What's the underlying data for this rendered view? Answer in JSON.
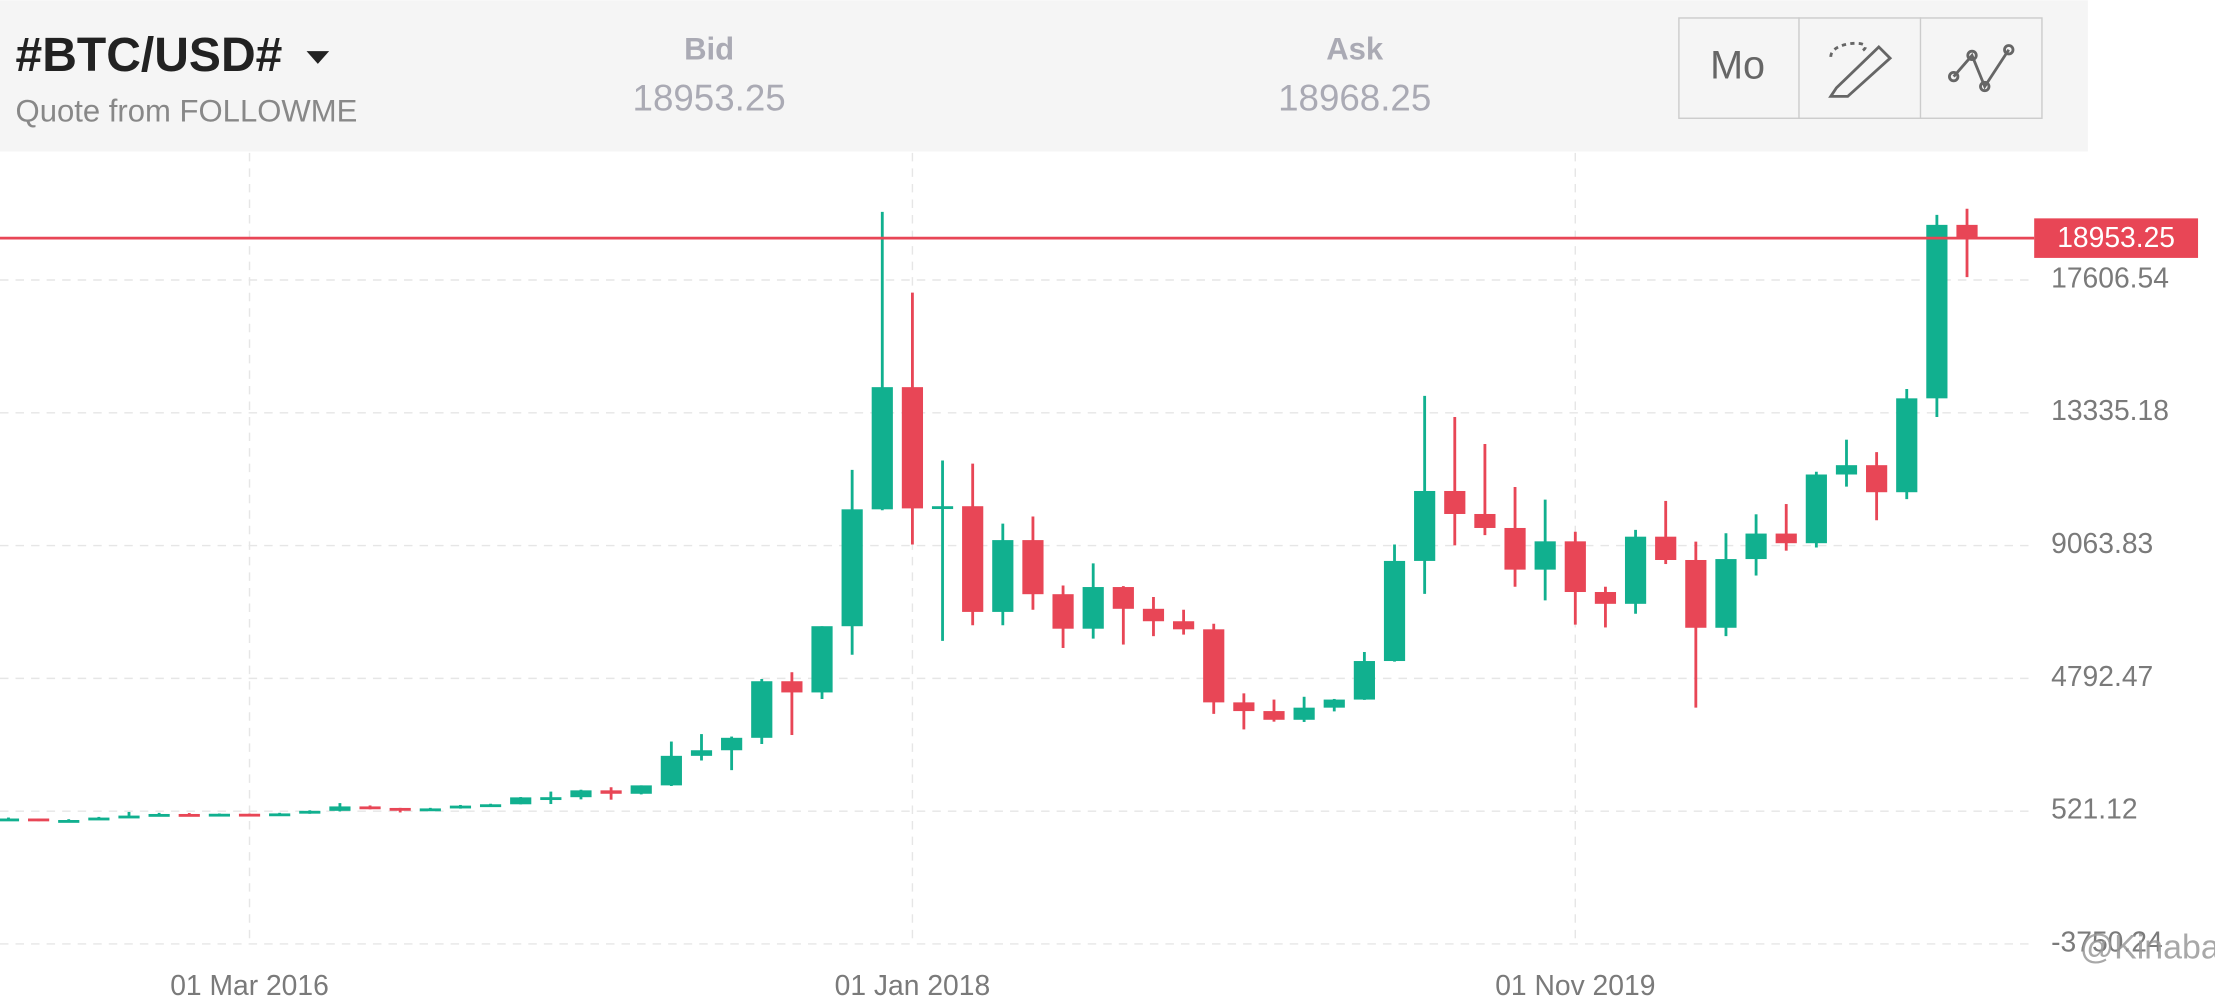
{
  "header": {
    "symbol": "#BTC/USD#",
    "source": "Quote from FOLLOWME",
    "bid_label": "Bid",
    "bid_value": "18953.25",
    "ask_label": "Ask",
    "ask_value": "18968.25",
    "period_button": "Mo"
  },
  "watermark": "@Kinabalu",
  "chart_data": {
    "type": "candlestick",
    "x": [
      "2015-07",
      "2015-08",
      "2015-09",
      "2015-10",
      "2015-11",
      "2015-12",
      "2016-01",
      "2016-02",
      "2016-03",
      "2016-04",
      "2016-05",
      "2016-06",
      "2016-07",
      "2016-08",
      "2016-09",
      "2016-10",
      "2016-11",
      "2016-12",
      "2017-01",
      "2017-02",
      "2017-03",
      "2017-04",
      "2017-05",
      "2017-06",
      "2017-07",
      "2017-08",
      "2017-09",
      "2017-10",
      "2017-11",
      "2017-12",
      "2018-01",
      "2018-02",
      "2018-03",
      "2018-04",
      "2018-05",
      "2018-06",
      "2018-07",
      "2018-08",
      "2018-09",
      "2018-10",
      "2018-11",
      "2018-12",
      "2019-01",
      "2019-02",
      "2019-03",
      "2019-04",
      "2019-05",
      "2019-06",
      "2019-07",
      "2019-08",
      "2019-09",
      "2019-10",
      "2019-11",
      "2019-12",
      "2020-01",
      "2020-02",
      "2020-03",
      "2020-04",
      "2020-05",
      "2020-06",
      "2020-07",
      "2020-08",
      "2020-09",
      "2020-10",
      "2020-11",
      "2020-12"
    ],
    "open": [
      263,
      284,
      230,
      236,
      314,
      378,
      430,
      369,
      437,
      416,
      448,
      531,
      673,
      624,
      575,
      609,
      699,
      742,
      964,
      970,
      1190,
      1080,
      1350,
      2300,
      2480,
      2880,
      4700,
      4340,
      6470,
      10230,
      14160,
      10260,
      10330,
      6930,
      9240,
      7500,
      6390,
      7730,
      7030,
      6630,
      6370,
      4020,
      3740,
      3460,
      3850,
      4110,
      5350,
      8570,
      10820,
      10080,
      9630,
      8290,
      9200,
      7570,
      7190,
      9350,
      8600,
      6420,
      8630,
      9450,
      9140,
      11350,
      11650,
      10780,
      13800,
      19380
    ],
    "high": [
      315,
      285,
      262,
      336,
      495,
      466,
      460,
      446,
      439,
      467,
      549,
      780,
      704,
      627,
      627,
      720,
      759,
      975,
      1150,
      1210,
      1290,
      1350,
      2760,
      3000,
      2920,
      4770,
      4990,
      6470,
      11500,
      19800,
      17200,
      11800,
      11700,
      9770,
      10000,
      7780,
      8490,
      7760,
      7410,
      7000,
      6550,
      4310,
      4110,
      4200,
      4130,
      5640,
      9100,
      13880,
      13200,
      12330,
      10950,
      10540,
      9510,
      7740,
      9570,
      10500,
      9190,
      9460,
      10070,
      10400,
      11440,
      12470,
      12070,
      14100,
      19700,
      19900
    ],
    "low": [
      253,
      199,
      224,
      236,
      300,
      350,
      350,
      367,
      395,
      413,
      436,
      510,
      580,
      480,
      570,
      602,
      680,
      740,
      750,
      900,
      890,
      1060,
      1330,
      2150,
      1840,
      2680,
      2970,
      4130,
      5550,
      10200,
      9100,
      6000,
      6500,
      6500,
      7000,
      5770,
      6070,
      5880,
      6150,
      6200,
      3650,
      3150,
      3400,
      3390,
      3730,
      4100,
      5330,
      7510,
      9070,
      9400,
      7740,
      7300,
      6520,
      6430,
      6870,
      8470,
      3850,
      6150,
      8100,
      8900,
      9000,
      10960,
      9880,
      10560,
      13200,
      17700
    ],
    "close": [
      284,
      230,
      236,
      314,
      378,
      430,
      369,
      437,
      416,
      448,
      531,
      673,
      624,
      575,
      609,
      699,
      742,
      964,
      970,
      1190,
      1080,
      1350,
      2300,
      2480,
      2880,
      4700,
      4340,
      6470,
      10230,
      14160,
      10260,
      10330,
      6930,
      9240,
      7500,
      6390,
      7730,
      7030,
      6630,
      6370,
      4020,
      3740,
      3460,
      3850,
      4110,
      5350,
      8570,
      10820,
      10080,
      9630,
      8290,
      9200,
      7570,
      7190,
      9350,
      8600,
      6420,
      8630,
      9450,
      9140,
      11350,
      11650,
      10780,
      13800,
      19380,
      18953
    ],
    "up_color": "#11b08f",
    "down_color": "#e84656",
    "last_price": 18953.25,
    "last_price_color": "#e84656",
    "ylim": [
      -4296,
      21696
    ],
    "yticks": [
      -3750.24,
      521.12,
      4792.47,
      9063.83,
      13335.18,
      17606.54
    ],
    "xticks": [
      {
        "value": "2016-03",
        "label": "01 Mar 2016"
      },
      {
        "value": "2018-01",
        "label": "01 Jan 2018"
      },
      {
        "value": "2019-11",
        "label": "01 Nov 2019"
      }
    ],
    "grid": true
  }
}
